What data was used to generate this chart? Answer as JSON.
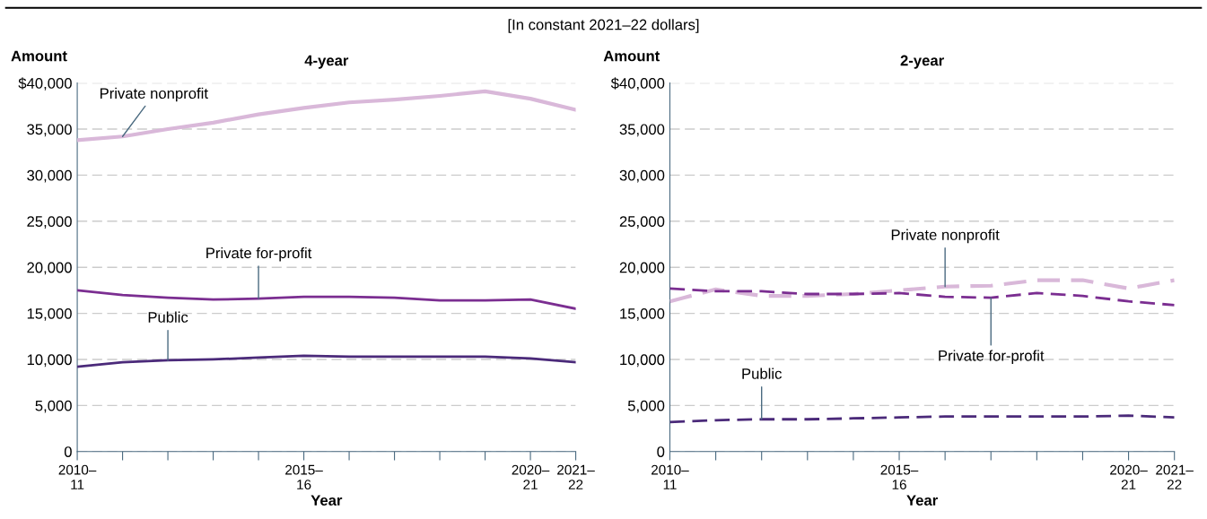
{
  "chart_data": [
    {
      "type": "line",
      "title": "4-year",
      "ylabel": "Amount",
      "xlabel": "Year",
      "annotations": [
        "[In constant 2021–22 dollars]"
      ],
      "categories": [
        "2010–\n11",
        null,
        null,
        null,
        null,
        "2015–\n16",
        null,
        null,
        null,
        null,
        "2020–\n21",
        "2021–\n22"
      ],
      "series": [
        {
          "name": "Private nonprofit",
          "color": "#d9b8d9",
          "values": [
            33800,
            34200,
            35000,
            35700,
            36600,
            37300,
            37900,
            38200,
            38600,
            39100,
            38300,
            37100
          ]
        },
        {
          "name": "Private for-profit",
          "color": "#7b2e91",
          "values": [
            17500,
            17000,
            16700,
            16500,
            16600,
            16800,
            16800,
            16700,
            16400,
            16400,
            16500,
            15500
          ]
        },
        {
          "name": "Public",
          "color": "#4b2a7a",
          "values": [
            9200,
            9700,
            9900,
            10000,
            10200,
            10400,
            10300,
            10300,
            10300,
            10300,
            10100,
            9700
          ]
        }
      ],
      "ylim": [
        0,
        40000
      ],
      "yticks": [
        {
          "value": 0,
          "label": "0"
        },
        {
          "value": 5000,
          "label": "5,000"
        },
        {
          "value": 10000,
          "label": "10,000"
        },
        {
          "value": 15000,
          "label": "15,000"
        },
        {
          "value": 20000,
          "label": "20,000"
        },
        {
          "value": 25000,
          "label": "25,000"
        },
        {
          "value": 30000,
          "label": "30,000"
        },
        {
          "value": 35000,
          "label": "35,000"
        },
        {
          "value": 40000,
          "label": "$40,000"
        }
      ],
      "grid": "y",
      "legend": false,
      "line_style": "solid",
      "marker": "none"
    },
    {
      "type": "line",
      "title": "2-year",
      "ylabel": "Amount",
      "xlabel": "Year",
      "categories": [
        "2010–\n11",
        null,
        null,
        null,
        null,
        "2015–\n16",
        null,
        null,
        null,
        null,
        "2020–\n21",
        "2021–\n22"
      ],
      "series": [
        {
          "name": "Private nonprofit",
          "color": "#d9b8d9",
          "values": [
            16300,
            17600,
            16900,
            16900,
            17100,
            17500,
            17900,
            18000,
            18600,
            18600,
            17700,
            18600
          ]
        },
        {
          "name": "Private for-profit",
          "color": "#7b2e91",
          "values": [
            17700,
            17400,
            17400,
            17100,
            17100,
            17200,
            16800,
            16700,
            17200,
            16900,
            16300,
            15900
          ]
        },
        {
          "name": "Public",
          "color": "#4b2a7a",
          "values": [
            3200,
            3400,
            3500,
            3500,
            3600,
            3700,
            3800,
            3800,
            3800,
            3800,
            3900,
            3700
          ]
        }
      ],
      "ylim": [
        0,
        40000
      ],
      "yticks": [
        {
          "value": 0,
          "label": "0"
        },
        {
          "value": 5000,
          "label": "5,000"
        },
        {
          "value": 10000,
          "label": "10,000"
        },
        {
          "value": 15000,
          "label": "15,000"
        },
        {
          "value": 20000,
          "label": "20,000"
        },
        {
          "value": 25000,
          "label": "25,000"
        },
        {
          "value": 30000,
          "label": "30,000"
        },
        {
          "value": 35000,
          "label": "35,000"
        },
        {
          "value": 40000,
          "label": "$40,000"
        }
      ],
      "grid": "y",
      "legend": false,
      "line_style": "dashed",
      "marker": "none"
    }
  ]
}
